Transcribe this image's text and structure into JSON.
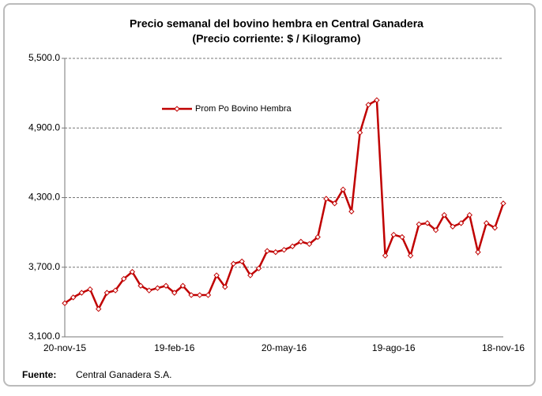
{
  "chart_data": {
    "type": "line",
    "title": "Precio semanal del bovino  hembra en Central Ganadera",
    "subtitle": "(Precio corriente: $ / Kilogramo)",
    "categories": [
      "20-nov-15",
      null,
      null,
      null,
      null,
      null,
      null,
      null,
      null,
      null,
      null,
      null,
      null,
      "19-feb-16",
      null,
      null,
      null,
      null,
      null,
      null,
      null,
      null,
      null,
      null,
      null,
      null,
      "20-may-16",
      null,
      null,
      null,
      null,
      null,
      null,
      null,
      null,
      null,
      null,
      null,
      null,
      "19-ago-16",
      null,
      null,
      null,
      null,
      null,
      null,
      null,
      null,
      null,
      null,
      null,
      null,
      "18-nov-16"
    ],
    "series": [
      {
        "name": "Prom Po Bovino Hembra",
        "color": "#c00000",
        "values": [
          3390,
          3440,
          3480,
          3510,
          3340,
          3480,
          3500,
          3600,
          3660,
          3540,
          3500,
          3520,
          3540,
          3480,
          3540,
          3460,
          3460,
          3460,
          3630,
          3530,
          3730,
          3750,
          3630,
          3690,
          3840,
          3830,
          3850,
          3880,
          3920,
          3900,
          3960,
          4290,
          4250,
          4370,
          4180,
          4860,
          5100,
          5140,
          3800,
          3980,
          3960,
          3800,
          4070,
          4080,
          4020,
          4150,
          4050,
          4080,
          4150,
          3830,
          4080,
          4040,
          4250
        ]
      }
    ],
    "ylim": [
      3100,
      5500
    ],
    "yticks": [
      {
        "value": 3100,
        "label": "3,100.0"
      },
      {
        "value": 3700,
        "label": "3,700.0"
      },
      {
        "value": 4300,
        "label": "4,300.0"
      },
      {
        "value": 4900,
        "label": "4,900.0"
      },
      {
        "value": 5500,
        "label": "5,500.0"
      }
    ],
    "grid": true,
    "legend": "upper-left",
    "source_label": "Fuente:",
    "source": "Central Ganadera S.A."
  }
}
